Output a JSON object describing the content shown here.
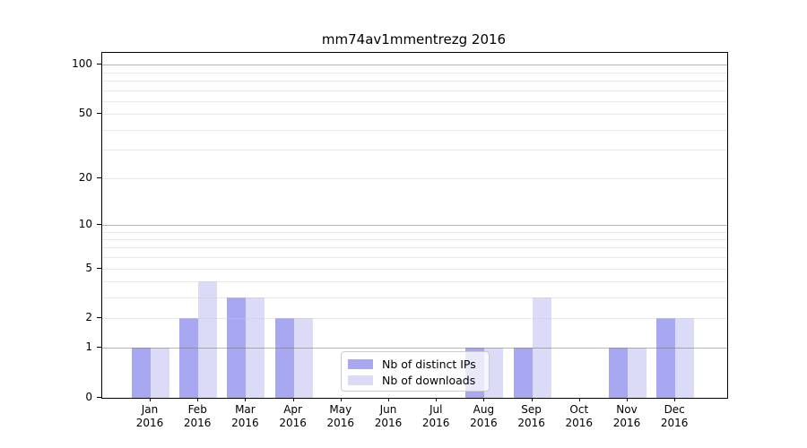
{
  "chart_data": {
    "type": "bar",
    "title": "mm74av1mmentrezg 2016",
    "categories": [
      "Jan",
      "Feb",
      "Mar",
      "Apr",
      "May",
      "Jun",
      "Jul",
      "Aug",
      "Sep",
      "Oct",
      "Nov",
      "Dec"
    ],
    "year_label": "2016",
    "series": [
      {
        "name": "Nb of distinct IPs",
        "color": "#a8a8f2",
        "values": [
          1,
          2,
          3,
          2,
          0,
          0,
          0,
          1,
          1,
          0,
          1,
          2
        ]
      },
      {
        "name": "Nb of downloads",
        "color": "#dbdbf8",
        "values": [
          1,
          4,
          3,
          2,
          0,
          0,
          0,
          1,
          3,
          0,
          1,
          2
        ]
      }
    ],
    "xlabel": "",
    "ylabel": "",
    "yscale": "log1p",
    "ylim": [
      0,
      117
    ],
    "yticks_labeled": [
      0,
      1,
      2,
      5,
      10,
      20,
      50,
      100
    ],
    "gridlines_major": [
      1,
      10,
      100
    ],
    "gridlines_minor": [
      2,
      3,
      4,
      5,
      6,
      7,
      8,
      9,
      20,
      30,
      40,
      50,
      60,
      70,
      80,
      90
    ],
    "grid": "on",
    "legend_position": "lower center"
  }
}
